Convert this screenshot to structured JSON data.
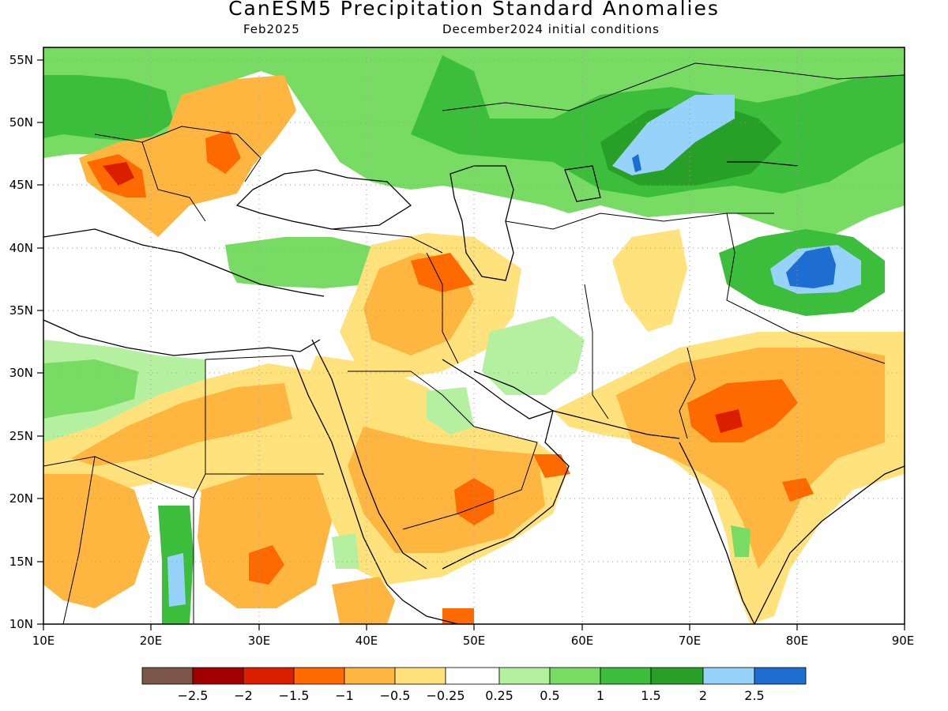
{
  "header": {
    "title": "CanESM5 Precipitation Standard Anomalies",
    "valid": "Feb2025",
    "init": "December2024 initial conditions"
  },
  "map": {
    "lon_range": [
      10,
      90
    ],
    "lat_range": [
      10,
      56
    ],
    "lon_ticks": [
      "10E",
      "20E",
      "30E",
      "40E",
      "50E",
      "60E",
      "70E",
      "80E",
      "90E"
    ],
    "lat_ticks": [
      "55N",
      "50N",
      "45N",
      "40N",
      "35N",
      "30N",
      "25N",
      "20N",
      "15N",
      "10N"
    ]
  },
  "colorbar": {
    "colors": [
      "#7a5548",
      "#a00000",
      "#dc1e00",
      "#ff6a00",
      "#ffb641",
      "#ffe27b",
      "#ffffff",
      "#b4f0a0",
      "#78dc64",
      "#3cbe3c",
      "#28a028",
      "#96d2fa",
      "#1e6ed2"
    ],
    "labels": [
      "−2.5",
      "−2",
      "−1.5",
      "−1",
      "−0.5",
      "−0.25",
      "0.25",
      "0.5",
      "1",
      "1.5",
      "2",
      "2.5"
    ]
  }
}
